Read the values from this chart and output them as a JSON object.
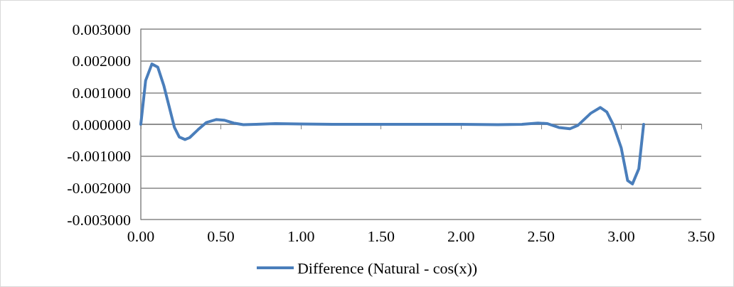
{
  "chart_data": {
    "type": "line",
    "x": [
      0,
      0.03,
      0.069,
      0.106,
      0.143,
      0.18,
      0.21,
      0.24,
      0.276,
      0.305,
      0.357,
      0.41,
      0.47,
      0.52,
      0.58,
      0.64,
      0.72,
      0.84,
      0.99,
      1.2,
      1.5,
      1.8,
      2.0,
      2.23,
      2.38,
      2.48,
      2.54,
      2.61,
      2.68,
      2.73,
      2.81,
      2.87,
      2.91,
      2.95,
      3.0,
      3.04,
      3.07,
      3.11,
      3.14
    ],
    "series": [
      {
        "name": "Difference (Natural - cos(x))",
        "color": "#4a7ebb",
        "values": [
          0,
          0.00138,
          0.0019,
          0.0018,
          0.00123,
          0.0005,
          -0.0001,
          -0.0004,
          -0.00048,
          -0.00042,
          -0.00017,
          6e-05,
          0.00015,
          0.00013,
          4e-05,
          -1e-05,
          0,
          2e-05,
          1e-05,
          0,
          0,
          0,
          0,
          -1e-05,
          0,
          4e-05,
          2e-05,
          -0.0001,
          -0.00014,
          -3e-05,
          0.00035,
          0.00053,
          0.00039,
          -1e-05,
          -0.00074,
          -0.00177,
          -0.00188,
          -0.0014,
          0
        ]
      }
    ],
    "xlim": [
      0,
      3.5
    ],
    "xticks": [
      {
        "value": 0,
        "label": "0.00"
      },
      {
        "value": 0.5,
        "label": "0.50"
      },
      {
        "value": 1,
        "label": "1.00"
      },
      {
        "value": 1.5,
        "label": "1.50"
      },
      {
        "value": 2,
        "label": "2.00"
      },
      {
        "value": 2.5,
        "label": "2.50"
      },
      {
        "value": 3,
        "label": "3.00"
      },
      {
        "value": 3.5,
        "label": "3.50"
      }
    ],
    "ylim": [
      -0.003,
      0.003
    ],
    "yticks": [
      {
        "value": -0.003,
        "label": "-0.003000"
      },
      {
        "value": -0.002,
        "label": "-0.002000"
      },
      {
        "value": -0.001,
        "label": "-0.001000"
      },
      {
        "value": 0,
        "label": "0.000000"
      },
      {
        "value": 0.001,
        "label": "0.001000"
      },
      {
        "value": 0.002,
        "label": "0.002000"
      },
      {
        "value": 0.003,
        "label": "0.003000"
      }
    ],
    "grid": "y",
    "legend": "bottom",
    "marker": "none",
    "line_style": "solid"
  }
}
